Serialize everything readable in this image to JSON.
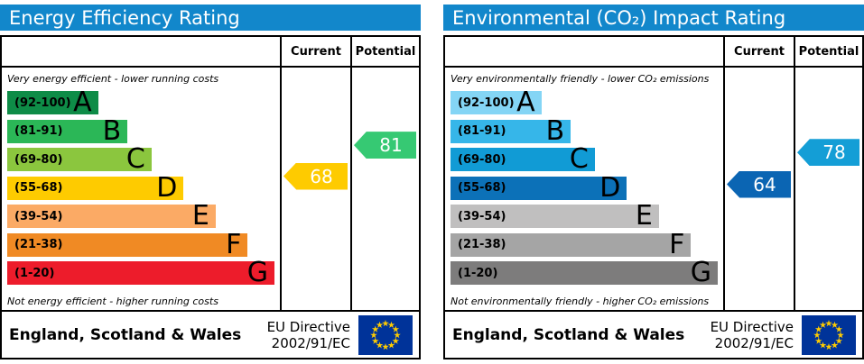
{
  "theme": {
    "header_blue": "#1287cb",
    "flag_blue": "#003399",
    "star_yellow": "#ffcc00",
    "border_black": "#000000"
  },
  "panels": [
    {
      "title": "Energy Efficiency Rating",
      "columns": {
        "current": "Current",
        "potential": "Potential"
      },
      "top_note": "Very energy efficient - lower running costs",
      "bottom_note": "Not energy efficient - higher running costs",
      "bands": [
        {
          "letter": "A",
          "range": "(92-100)",
          "lo": 92,
          "hi": 100,
          "color": "#0e8c47",
          "width_pct": 34
        },
        {
          "letter": "B",
          "range": "(81-91)",
          "lo": 81,
          "hi": 91,
          "color": "#2bb757",
          "width_pct": 45
        },
        {
          "letter": "C",
          "range": "(69-80)",
          "lo": 69,
          "hi": 80,
          "color": "#8bc63e",
          "width_pct": 54
        },
        {
          "letter": "D",
          "range": "(55-68)",
          "lo": 55,
          "hi": 68,
          "color": "#fecb00",
          "width_pct": 66
        },
        {
          "letter": "E",
          "range": "(39-54)",
          "lo": 39,
          "hi": 54,
          "color": "#fbaa65",
          "width_pct": 78
        },
        {
          "letter": "F",
          "range": "(21-38)",
          "lo": 21,
          "hi": 38,
          "color": "#f08a24",
          "width_pct": 90
        },
        {
          "letter": "G",
          "range": "(1-20)",
          "lo": 1,
          "hi": 20,
          "color": "#ed1c2b",
          "width_pct": 100
        }
      ],
      "current": {
        "value": 68,
        "color": "#fecb00"
      },
      "potential": {
        "value": 81,
        "color": "#36c973"
      },
      "footer": {
        "region": "England, Scotland & Wales",
        "directive_line1": "EU Directive",
        "directive_line2": "2002/91/EC"
      }
    },
    {
      "title": "Environmental (CO₂) Impact Rating",
      "columns": {
        "current": "Current",
        "potential": "Potential"
      },
      "top_note": "Very environmentally friendly - lower CO₂ emissions",
      "bottom_note": "Not environmentally friendly - higher CO₂ emissions",
      "bands": [
        {
          "letter": "A",
          "range": "(92-100)",
          "lo": 92,
          "hi": 100,
          "color": "#84d5f5",
          "width_pct": 34
        },
        {
          "letter": "B",
          "range": "(81-91)",
          "lo": 81,
          "hi": 91,
          "color": "#36b6e9",
          "width_pct": 45
        },
        {
          "letter": "C",
          "range": "(69-80)",
          "lo": 69,
          "hi": 80,
          "color": "#119bd5",
          "width_pct": 54
        },
        {
          "letter": "D",
          "range": "(55-68)",
          "lo": 55,
          "hi": 68,
          "color": "#0c71b8",
          "width_pct": 66
        },
        {
          "letter": "E",
          "range": "(39-54)",
          "lo": 39,
          "hi": 54,
          "color": "#c0bfbf",
          "width_pct": 78
        },
        {
          "letter": "F",
          "range": "(21-38)",
          "lo": 21,
          "hi": 38,
          "color": "#a5a5a5",
          "width_pct": 90
        },
        {
          "letter": "G",
          "range": "(1-20)",
          "lo": 1,
          "hi": 20,
          "color": "#7d7c7c",
          "width_pct": 100
        }
      ],
      "current": {
        "value": 64,
        "color": "#0b65b3"
      },
      "potential": {
        "value": 78,
        "color": "#149ed6"
      },
      "footer": {
        "region": "England, Scotland & Wales",
        "directive_line1": "EU Directive",
        "directive_line2": "2002/91/EC"
      }
    }
  ],
  "chart_data": [
    {
      "type": "bar",
      "orientation": "horizontal",
      "title": "Energy Efficiency Rating",
      "categories": [
        "A (92-100)",
        "B (81-91)",
        "C (69-80)",
        "D (55-68)",
        "E (39-54)",
        "F (21-38)",
        "G (1-20)"
      ],
      "values": [
        34,
        45,
        54,
        66,
        78,
        90,
        100
      ],
      "values_meaning": "decorative band bar length as % of column width",
      "markers": [
        {
          "name": "Current",
          "value": 68,
          "band": "D"
        },
        {
          "name": "Potential",
          "value": 81,
          "band": "B"
        }
      ],
      "top_label": "Very energy efficient - lower running costs",
      "bottom_label": "Not energy efficient - higher running costs",
      "legend_position": "none",
      "grid": false
    },
    {
      "type": "bar",
      "orientation": "horizontal",
      "title": "Environmental (CO₂) Impact Rating",
      "categories": [
        "A (92-100)",
        "B (81-91)",
        "C (69-80)",
        "D (55-68)",
        "E (39-54)",
        "F (21-38)",
        "G (1-20)"
      ],
      "values": [
        34,
        45,
        54,
        66,
        78,
        90,
        100
      ],
      "values_meaning": "decorative band bar length as % of column width",
      "markers": [
        {
          "name": "Current",
          "value": 64,
          "band": "D"
        },
        {
          "name": "Potential",
          "value": 78,
          "band": "C"
        }
      ],
      "top_label": "Very environmentally friendly - lower CO₂ emissions",
      "bottom_label": "Not environmentally friendly - higher CO₂ emissions",
      "legend_position": "none",
      "grid": false
    }
  ]
}
